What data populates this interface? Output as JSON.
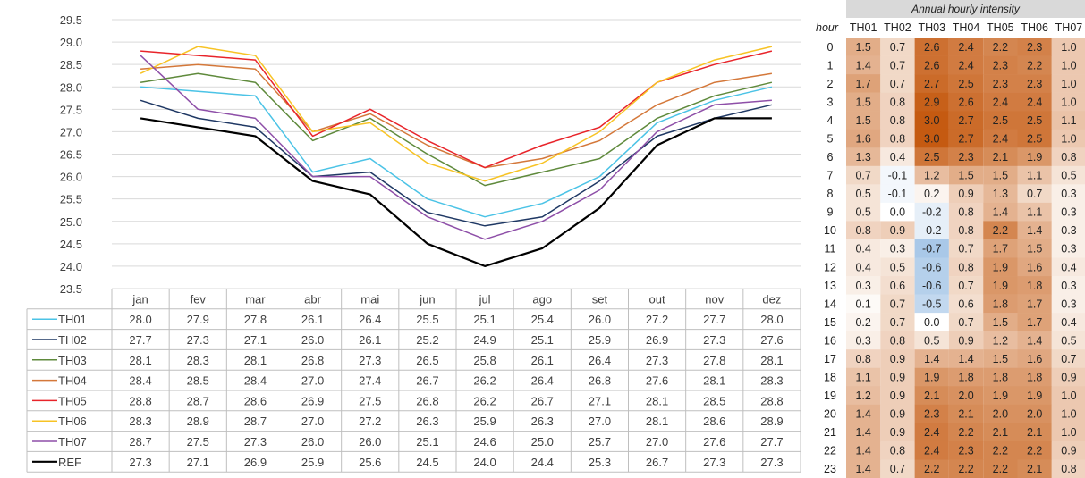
{
  "chart_data": [
    {
      "type": "line",
      "title": "",
      "xlabel": "",
      "ylabel": "",
      "categories": [
        "jan",
        "fev",
        "mar",
        "abr",
        "mai",
        "jun",
        "jul",
        "ago",
        "set",
        "out",
        "nov",
        "dez"
      ],
      "ylim": [
        23.5,
        29.5
      ],
      "yticks": [
        "29.5",
        "29.0",
        "28.5",
        "28.0",
        "27.5",
        "27.0",
        "26.5",
        "26.0",
        "25.5",
        "25.0",
        "24.5",
        "24.0",
        "23.5"
      ],
      "grid": true,
      "legend": "data-table-below",
      "series": [
        {
          "name": "TH01",
          "color": "#4bc3e6",
          "values": [
            "28.0",
            "27.9",
            "27.8",
            "26.1",
            "26.4",
            "25.5",
            "25.1",
            "25.4",
            "26.0",
            "27.2",
            "27.7",
            "28.0"
          ]
        },
        {
          "name": "TH02",
          "color": "#1f3864",
          "values": [
            "27.7",
            "27.3",
            "27.1",
            "26.0",
            "26.1",
            "25.2",
            "24.9",
            "25.1",
            "25.9",
            "26.9",
            "27.3",
            "27.6"
          ]
        },
        {
          "name": "TH03",
          "color": "#5f8a3c",
          "values": [
            "28.1",
            "28.3",
            "28.1",
            "26.8",
            "27.3",
            "26.5",
            "25.8",
            "26.1",
            "26.4",
            "27.3",
            "27.8",
            "28.1"
          ]
        },
        {
          "name": "TH04",
          "color": "#d4783a",
          "values": [
            "28.4",
            "28.5",
            "28.4",
            "27.0",
            "27.4",
            "26.7",
            "26.2",
            "26.4",
            "26.8",
            "27.6",
            "28.1",
            "28.3"
          ]
        },
        {
          "name": "TH05",
          "color": "#e8242a",
          "values": [
            "28.8",
            "28.7",
            "28.6",
            "26.9",
            "27.5",
            "26.8",
            "26.2",
            "26.7",
            "27.1",
            "28.1",
            "28.5",
            "28.8"
          ]
        },
        {
          "name": "TH06",
          "color": "#f7c325",
          "values": [
            "28.3",
            "28.9",
            "28.7",
            "27.0",
            "27.2",
            "26.3",
            "25.9",
            "26.3",
            "27.0",
            "28.1",
            "28.6",
            "28.9"
          ]
        },
        {
          "name": "TH07",
          "color": "#8e4fa8",
          "values": [
            "28.7",
            "27.5",
            "27.3",
            "26.0",
            "26.0",
            "25.1",
            "24.6",
            "25.0",
            "25.7",
            "27.0",
            "27.6",
            "27.7"
          ]
        },
        {
          "name": "REF",
          "color": "#000000",
          "values": [
            "27.3",
            "27.1",
            "26.9",
            "25.9",
            "25.6",
            "24.5",
            "24.0",
            "24.4",
            "25.3",
            "26.7",
            "27.3",
            "27.3"
          ]
        }
      ]
    },
    {
      "type": "heatmap",
      "title": "Annual hourly intensity",
      "row_header": "hour",
      "columns": [
        "TH01",
        "TH02",
        "TH03",
        "TH04",
        "TH05",
        "TH06",
        "TH07"
      ],
      "rows": [
        "0",
        "1",
        "2",
        "3",
        "4",
        "5",
        "6",
        "7",
        "8",
        "9",
        "10",
        "11",
        "12",
        "13",
        "14",
        "15",
        "16",
        "17",
        "18",
        "19",
        "20",
        "21",
        "22",
        "23"
      ],
      "values": [
        [
          "1.5",
          "0.7",
          "2.6",
          "2.4",
          "2.2",
          "2.3",
          "1.0"
        ],
        [
          "1.4",
          "0.7",
          "2.6",
          "2.4",
          "2.3",
          "2.2",
          "1.0"
        ],
        [
          "1.7",
          "0.7",
          "2.7",
          "2.5",
          "2.3",
          "2.3",
          "1.0"
        ],
        [
          "1.5",
          "0.8",
          "2.9",
          "2.6",
          "2.4",
          "2.4",
          "1.0"
        ],
        [
          "1.5",
          "0.8",
          "3.0",
          "2.7",
          "2.5",
          "2.5",
          "1.1"
        ],
        [
          "1.6",
          "0.8",
          "3.0",
          "2.7",
          "2.4",
          "2.5",
          "1.0"
        ],
        [
          "1.3",
          "0.4",
          "2.5",
          "2.3",
          "2.1",
          "1.9",
          "0.8"
        ],
        [
          "0.7",
          "-0.1",
          "1.2",
          "1.5",
          "1.5",
          "1.1",
          "0.5"
        ],
        [
          "0.5",
          "-0.1",
          "0.2",
          "0.9",
          "1.3",
          "0.7",
          "0.3"
        ],
        [
          "0.5",
          "0.0",
          "-0.2",
          "0.8",
          "1.4",
          "1.1",
          "0.3"
        ],
        [
          "0.8",
          "0.9",
          "-0.2",
          "0.8",
          "2.2",
          "1.4",
          "0.3"
        ],
        [
          "0.4",
          "0.3",
          "-0.7",
          "0.7",
          "1.7",
          "1.5",
          "0.3"
        ],
        [
          "0.4",
          "0.5",
          "-0.6",
          "0.8",
          "1.9",
          "1.6",
          "0.4"
        ],
        [
          "0.3",
          "0.6",
          "-0.6",
          "0.7",
          "1.9",
          "1.8",
          "0.3"
        ],
        [
          "0.1",
          "0.7",
          "-0.5",
          "0.6",
          "1.8",
          "1.7",
          "0.3"
        ],
        [
          "0.2",
          "0.7",
          "0.0",
          "0.7",
          "1.5",
          "1.7",
          "0.4"
        ],
        [
          "0.3",
          "0.8",
          "0.5",
          "0.9",
          "1.2",
          "1.4",
          "0.5"
        ],
        [
          "0.8",
          "0.9",
          "1.4",
          "1.4",
          "1.5",
          "1.6",
          "0.7"
        ],
        [
          "1.1",
          "0.9",
          "1.9",
          "1.8",
          "1.8",
          "1.8",
          "0.9"
        ],
        [
          "1.2",
          "0.9",
          "2.1",
          "2.0",
          "1.9",
          "1.9",
          "1.0"
        ],
        [
          "1.4",
          "0.9",
          "2.3",
          "2.1",
          "2.0",
          "2.0",
          "1.0"
        ],
        [
          "1.4",
          "0.9",
          "2.4",
          "2.2",
          "2.1",
          "2.1",
          "1.0"
        ],
        [
          "1.4",
          "0.8",
          "2.4",
          "2.3",
          "2.2",
          "2.2",
          "0.9"
        ],
        [
          "1.4",
          "0.7",
          "2.2",
          "2.2",
          "2.2",
          "2.1",
          "0.8"
        ]
      ],
      "color_scale": {
        "low": "#a9c8e8",
        "mid": "#ffffff",
        "high": "#c55a11"
      }
    }
  ]
}
